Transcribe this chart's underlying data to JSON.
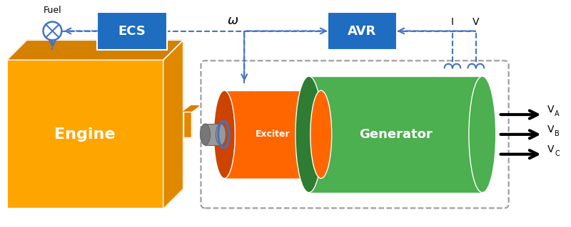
{
  "fig_width": 8.0,
  "fig_height": 3.19,
  "dpi": 100,
  "bg_color": "#ffffff",
  "engine_color": "#FFA500",
  "engine_dark": "#D48000",
  "engine_side_color": "#E08800",
  "exciter_color": "#FF6600",
  "exciter_dark": "#CC4400",
  "generator_color": "#4CAF50",
  "generator_dark": "#2e7d32",
  "shaft_color": "#999999",
  "shaft_dark": "#777777",
  "ecs_color": "#1E6DC0",
  "avr_color": "#1E6DC0",
  "dashed_color": "#4472C4",
  "arrow_color": "#000000",
  "text_engine": "Engine",
  "text_exciter": "Exciter",
  "text_generator": "Generator",
  "text_ecs": "ECS",
  "text_avr": "AVR",
  "text_fuel": "Fuel",
  "text_omega": "ω"
}
